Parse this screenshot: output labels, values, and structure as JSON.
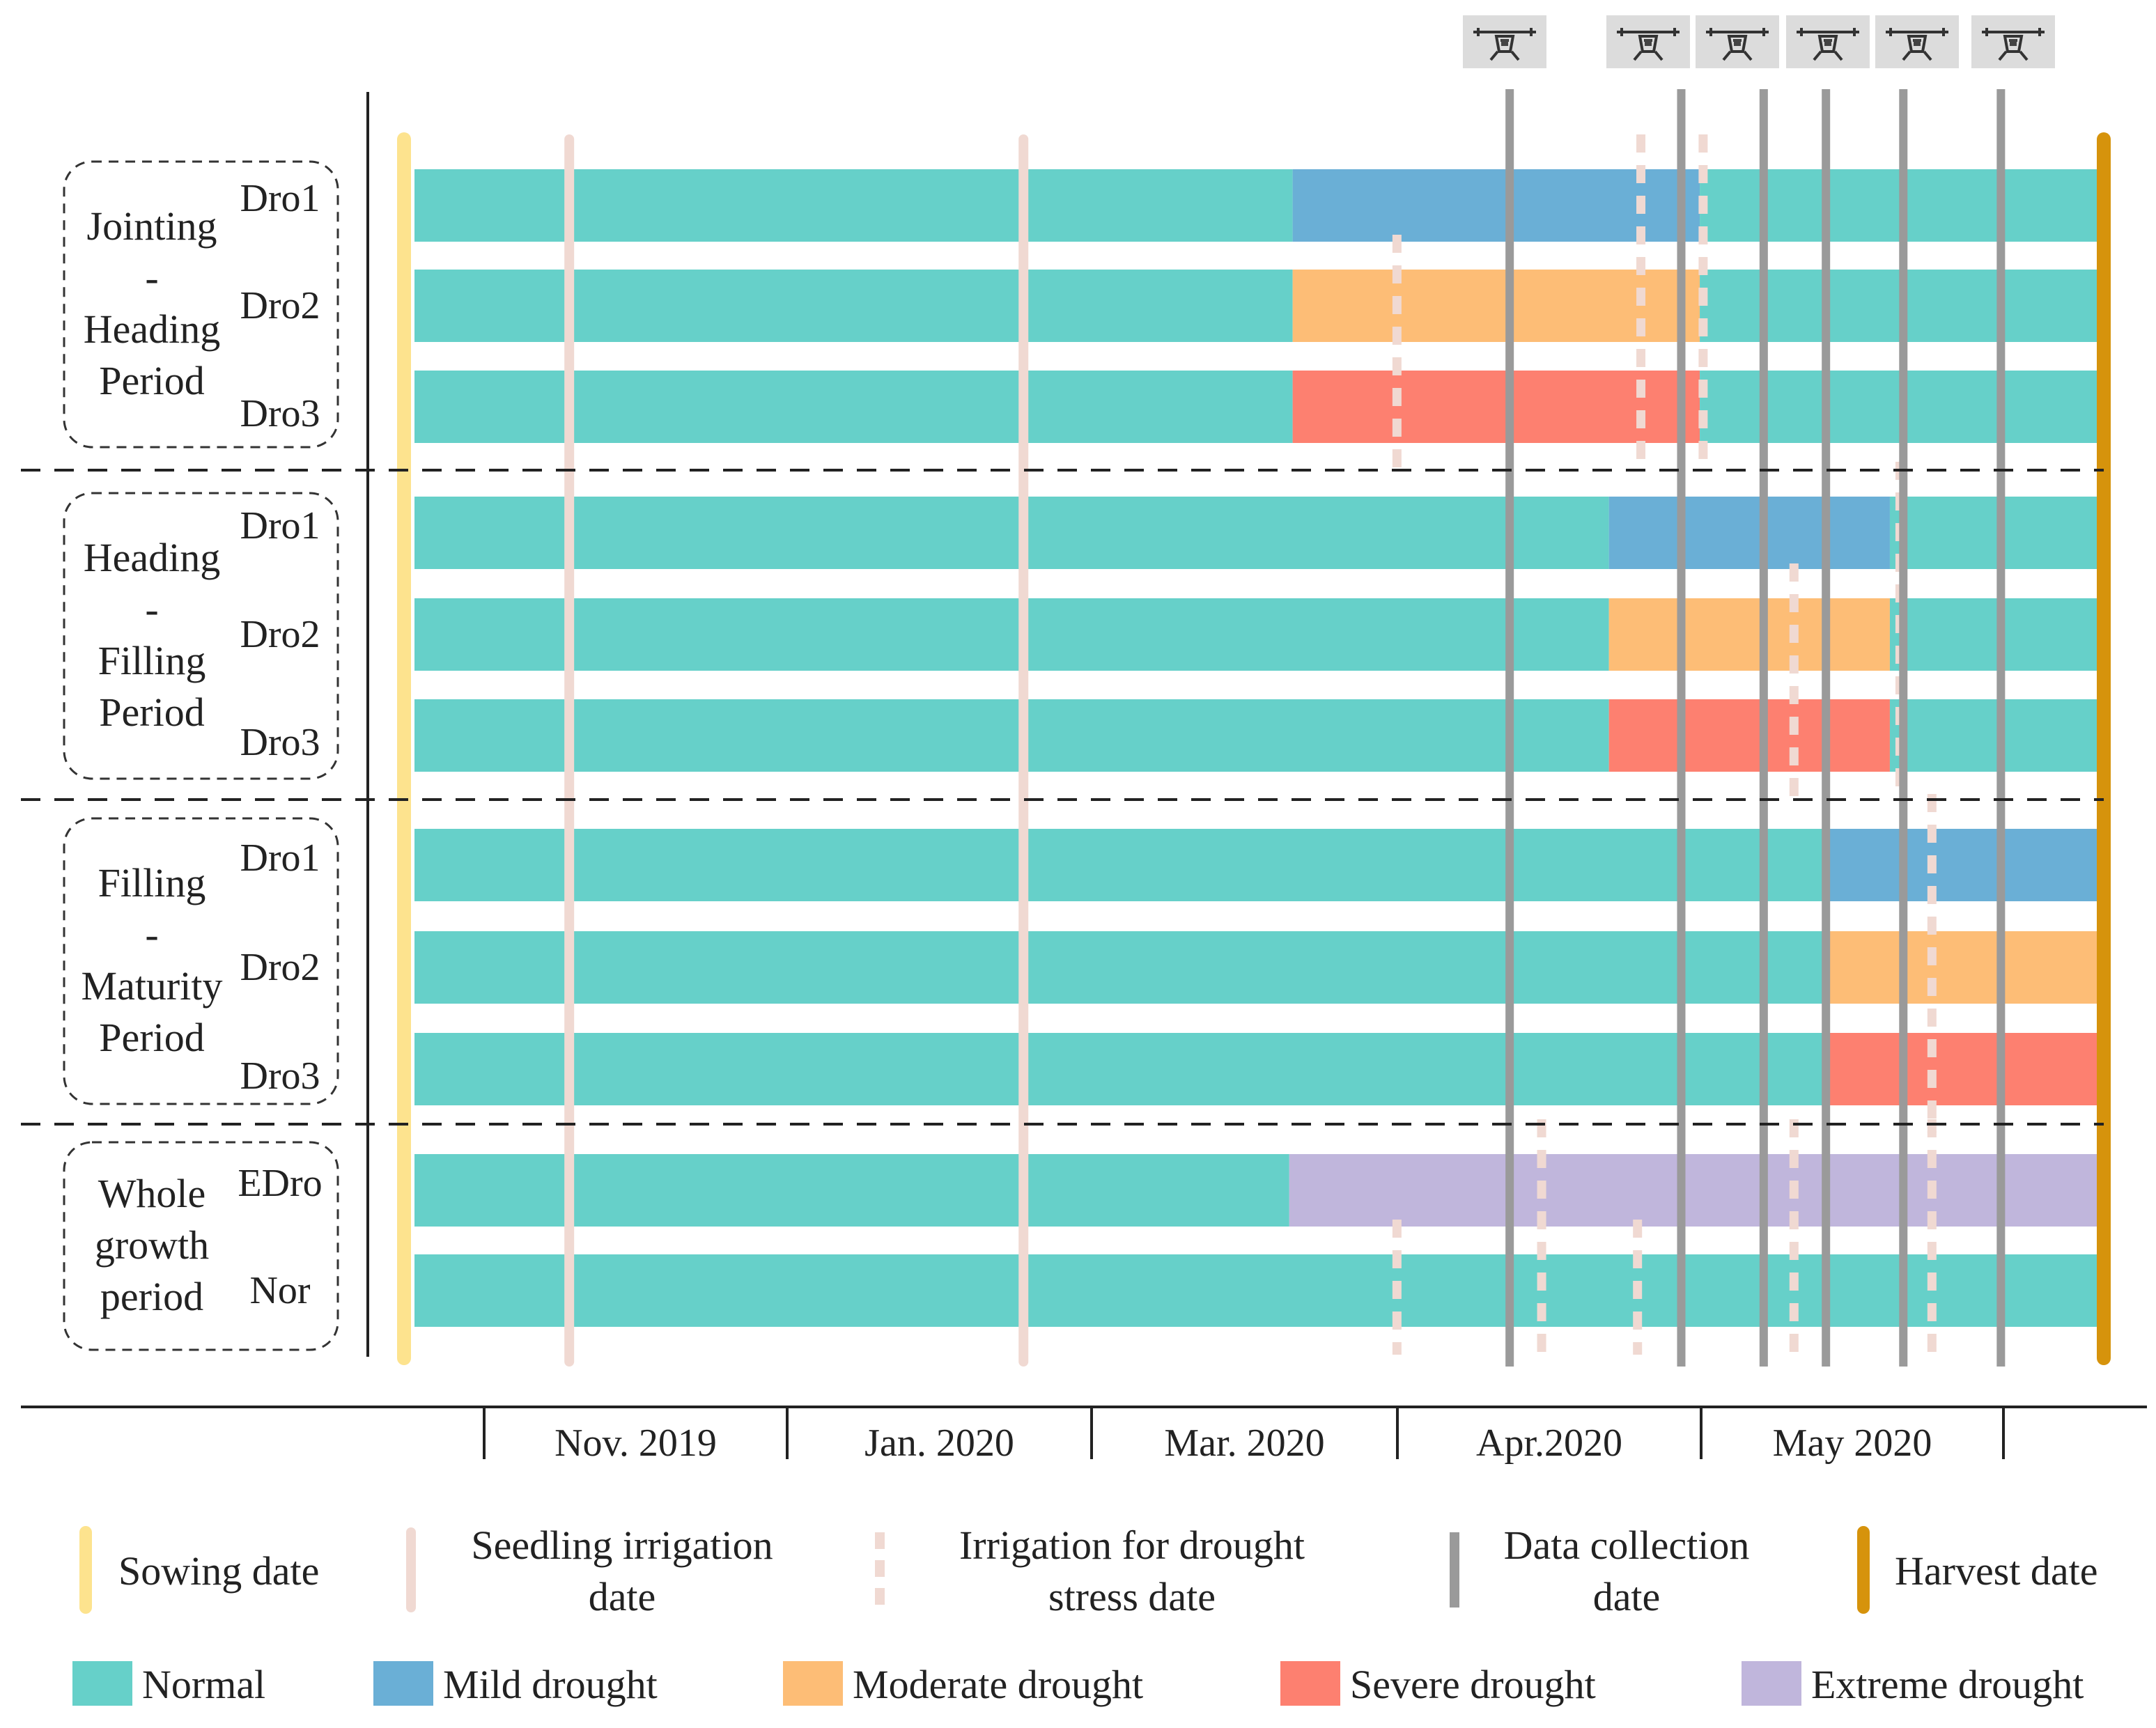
{
  "chart_data": {
    "type": "gantt",
    "title": "",
    "x_axis": {
      "months": [
        "Nov. 2019",
        "Jan. 2020",
        "Mar. 2020",
        "Apr.2020",
        "May 2020"
      ]
    },
    "groups": [
      {
        "label_lines": [
          "Jointing",
          "-",
          "Heading",
          "Period"
        ],
        "rows": [
          {
            "name": "Dro1",
            "segments": [
              {
                "level": "Normal",
                "from": 0.0,
                "to": 0.522
              },
              {
                "level": "Mild drought",
                "from": 0.522,
                "to": 0.764
              },
              {
                "level": "Normal",
                "from": 0.764,
                "to": 1.0
              }
            ]
          },
          {
            "name": "Dro2",
            "segments": [
              {
                "level": "Normal",
                "from": 0.0,
                "to": 0.522
              },
              {
                "level": "Moderate drought",
                "from": 0.522,
                "to": 0.764
              },
              {
                "level": "Normal",
                "from": 0.764,
                "to": 1.0
              }
            ]
          },
          {
            "name": "Dro3",
            "segments": [
              {
                "level": "Normal",
                "from": 0.0,
                "to": 0.522
              },
              {
                "level": "Severe drought",
                "from": 0.522,
                "to": 0.764
              },
              {
                "level": "Normal",
                "from": 0.764,
                "to": 1.0
              }
            ]
          }
        ]
      },
      {
        "label_lines": [
          "Heading",
          "-",
          "Filling",
          "Period"
        ],
        "rows": [
          {
            "name": "Dro1",
            "segments": [
              {
                "level": "Normal",
                "from": 0.0,
                "to": 0.71
              },
              {
                "level": "Mild drought",
                "from": 0.71,
                "to": 0.877
              },
              {
                "level": "Normal",
                "from": 0.877,
                "to": 1.0
              }
            ]
          },
          {
            "name": "Dro2",
            "segments": [
              {
                "level": "Normal",
                "from": 0.0,
                "to": 0.71
              },
              {
                "level": "Moderate drought",
                "from": 0.71,
                "to": 0.877
              },
              {
                "level": "Normal",
                "from": 0.877,
                "to": 1.0
              }
            ]
          },
          {
            "name": "Dro3",
            "segments": [
              {
                "level": "Normal",
                "from": 0.0,
                "to": 0.71
              },
              {
                "level": "Severe drought",
                "from": 0.71,
                "to": 0.877
              },
              {
                "level": "Normal",
                "from": 0.877,
                "to": 1.0
              }
            ]
          }
        ]
      },
      {
        "label_lines": [
          "Filling",
          "-",
          "Maturity",
          "Period"
        ],
        "rows": [
          {
            "name": "Dro1",
            "segments": [
              {
                "level": "Normal",
                "from": 0.0,
                "to": 0.837
              },
              {
                "level": "Mild drought",
                "from": 0.837,
                "to": 1.0
              }
            ]
          },
          {
            "name": "Dro2",
            "segments": [
              {
                "level": "Normal",
                "from": 0.0,
                "to": 0.837
              },
              {
                "level": "Moderate drought",
                "from": 0.837,
                "to": 1.0
              }
            ]
          },
          {
            "name": "Dro3",
            "segments": [
              {
                "level": "Normal",
                "from": 0.0,
                "to": 0.837
              },
              {
                "level": "Severe drought",
                "from": 0.837,
                "to": 1.0
              }
            ]
          }
        ]
      },
      {
        "label_lines": [
          "Whole",
          "growth",
          "period"
        ],
        "rows": [
          {
            "name": "EDro",
            "segments": [
              {
                "level": "Normal",
                "from": 0.0,
                "to": 0.52
              },
              {
                "level": "Extreme drought",
                "from": 0.52,
                "to": 1.0
              }
            ]
          },
          {
            "name": "Nor",
            "segments": [
              {
                "level": "Normal",
                "from": 0.0,
                "to": 1.0
              }
            ]
          }
        ]
      }
    ],
    "events": {
      "sowing": 0.0,
      "harvest": 1.0,
      "seedling_irrigation": [
        0.092,
        0.362
      ],
      "data_collection": [
        0.651,
        0.753,
        0.802,
        0.839,
        0.885,
        0.943
      ],
      "drought_irrigation": [
        {
          "at": 0.584,
          "rows": [
            1,
            2
          ]
        },
        {
          "at": 0.729,
          "rows": [
            0,
            1,
            2
          ]
        },
        {
          "at": 0.766,
          "rows": [
            0,
            1,
            2
          ]
        },
        {
          "at": 0.82,
          "rows": [
            4,
            5
          ]
        },
        {
          "at": 0.883,
          "rows": [
            3,
            4,
            5
          ]
        },
        {
          "at": 0.902,
          "rows": [
            6,
            7,
            8
          ]
        },
        {
          "at": 0.584,
          "rows": [
            10
          ]
        },
        {
          "at": 0.67,
          "rows": [
            9,
            10
          ]
        },
        {
          "at": 0.727,
          "rows": [
            10
          ]
        },
        {
          "at": 0.82,
          "rows": [
            9,
            10
          ]
        },
        {
          "at": 0.902,
          "rows": [
            9,
            10
          ]
        }
      ]
    },
    "legend": {
      "events": [
        {
          "key": "sowing",
          "label_lines": [
            "Sowing date"
          ]
        },
        {
          "key": "seedling",
          "label_lines": [
            "Seedling irrigation",
            "date"
          ]
        },
        {
          "key": "drought_irrigation",
          "label_lines": [
            "Irrigation for drought",
            "stress date"
          ]
        },
        {
          "key": "data_collection",
          "label_lines": [
            "Data collection",
            "date"
          ]
        },
        {
          "key": "harvest",
          "label_lines": [
            "Harvest date"
          ]
        }
      ],
      "levels": [
        "Normal",
        "Mild drought",
        "Moderate drought",
        "Severe drought",
        "Extreme drought"
      ]
    },
    "colors": {
      "Normal": "#66d0c9",
      "Mild drought": "#6aafd6",
      "Moderate drought": "#fdbd76",
      "Severe drought": "#fd8070",
      "Extreme drought": "#c0b6dc",
      "sowing": "#fde38e",
      "harvest": "#d6930c",
      "seedling": "#f0d9d2",
      "drought_irrigation": "#f0d9d2",
      "data_collection": "#9a9a9a"
    },
    "drone_icon_count": 6
  }
}
